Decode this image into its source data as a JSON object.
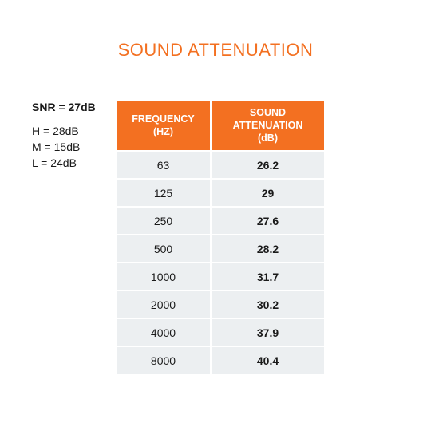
{
  "title": "SOUND ATTENUATION",
  "snr": "SNR = 27dB",
  "ratings": [
    "H = 28dB",
    "M = 15dB",
    "L = 24dB"
  ],
  "table": {
    "header_frequency_line1": "FREQUENCY",
    "header_frequency_line2": "(HZ)",
    "header_attenuation_line1": "SOUND",
    "header_attenuation_line2": "ATTENUATION",
    "header_attenuation_line3": "(dB)",
    "rows": [
      {
        "frequency": "63",
        "attenuation": "26.2"
      },
      {
        "frequency": "125",
        "attenuation": "29"
      },
      {
        "frequency": "250",
        "attenuation": "27.6"
      },
      {
        "frequency": "500",
        "attenuation": "28.2"
      },
      {
        "frequency": "1000",
        "attenuation": "31.7"
      },
      {
        "frequency": "2000",
        "attenuation": "30.2"
      },
      {
        "frequency": "4000",
        "attenuation": "37.9"
      },
      {
        "frequency": "8000",
        "attenuation": "40.4"
      }
    ]
  },
  "colors": {
    "accent": "#f37021",
    "row_background": "#eceff1"
  }
}
